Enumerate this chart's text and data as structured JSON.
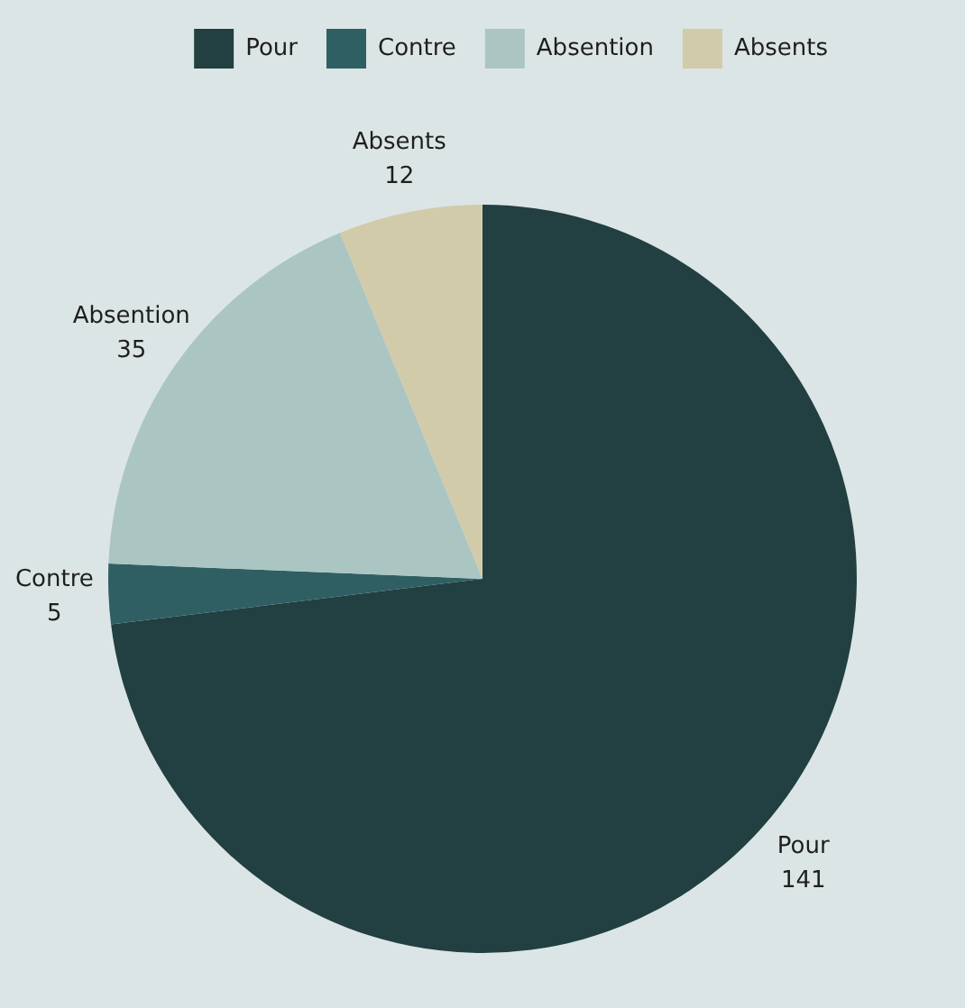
{
  "chart_data": {
    "type": "pie",
    "categories": [
      "Pour",
      "Contre",
      "Absention",
      "Absents"
    ],
    "values": [
      141,
      5,
      35,
      12
    ],
    "colors": [
      "#223f42",
      "#2f5f63",
      "#abc6c2",
      "#d1cbaa"
    ],
    "legend": "top right",
    "data_labels": true
  }
}
